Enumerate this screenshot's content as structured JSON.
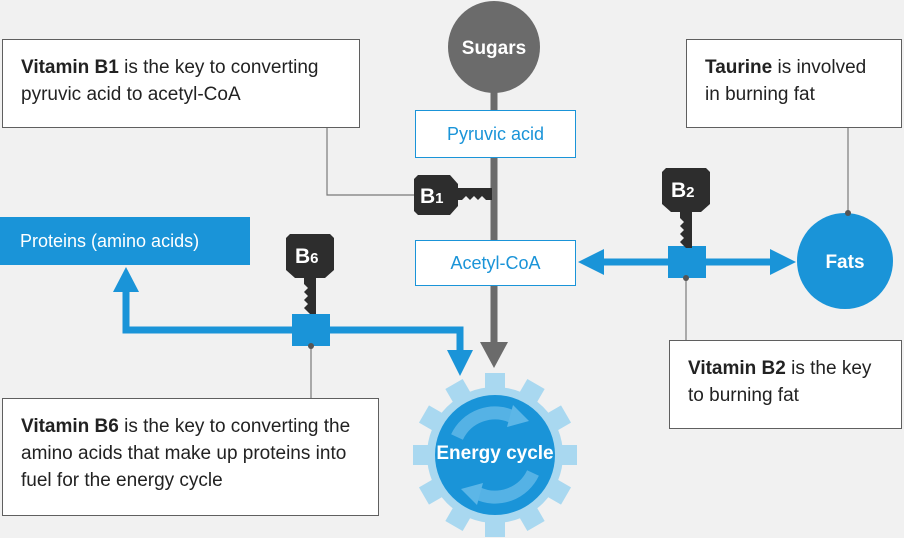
{
  "nodes": {
    "sugars": "Sugars",
    "fats": "Fats",
    "energy_cycle": "Energy cycle",
    "proteins": "Proteins (amino acids)",
    "pyruvic_acid": "Pyruvic acid",
    "acetyl_coa": "Acetyl-CoA"
  },
  "keys": {
    "b1": {
      "letter": "B",
      "sub": "1"
    },
    "b2": {
      "letter": "B",
      "sub": "2"
    },
    "b6": {
      "letter": "B",
      "sub": "6"
    }
  },
  "callouts": {
    "b1": {
      "bold": "Vitamin B1",
      "rest": " is the key to converting pyruvic acid to acetyl-CoA"
    },
    "taurine": {
      "bold": "Taurine",
      "rest": " is involved in burning fat"
    },
    "b2": {
      "bold": "Vitamin B2",
      "rest": " is the key to burning fat"
    },
    "b6": {
      "bold": "Vitamin B6",
      "rest": " is the key to converting the amino acids that make up proteins into fuel for the energy cycle"
    }
  },
  "colors": {
    "blue": "#1a94d8",
    "gray": "#6b6b6b",
    "dark": "#2d2d2d",
    "gear_light": "#a9d8f0"
  }
}
